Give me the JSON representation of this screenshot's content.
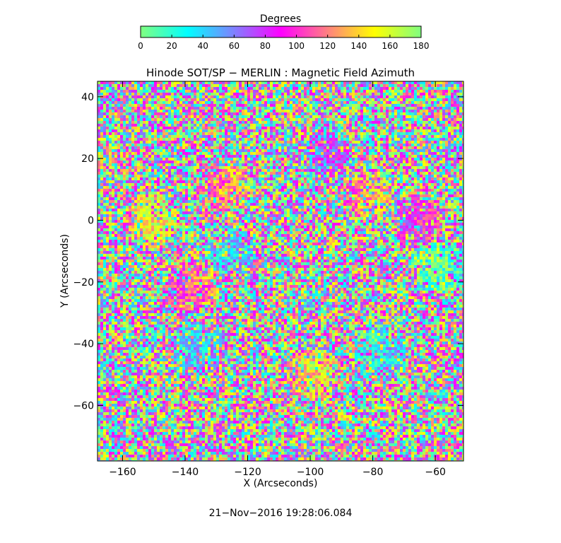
{
  "colorbar": {
    "title": "Degrees",
    "min": 0,
    "max": 180,
    "ticks": [
      0,
      20,
      40,
      60,
      80,
      100,
      120,
      140,
      160,
      180
    ],
    "colormap": [
      "#80ff80",
      "#00ffff",
      "#8080ff",
      "#ff00ff",
      "#ff8080",
      "#ffff00",
      "#80ff80"
    ]
  },
  "chart_data": {
    "type": "heatmap",
    "title": "Hinode SOT/SP − MERLIN : Magnetic Field Azimuth",
    "xlabel": "X (Arcseconds)",
    "ylabel": "Y (Arcseconds)",
    "xlim": [
      -168,
      -51
    ],
    "ylim": [
      -78,
      45
    ],
    "xticks": [
      -160,
      -140,
      -120,
      -100,
      -80,
      -60
    ],
    "yticks": [
      40,
      20,
      0,
      -20,
      -40,
      -60
    ],
    "value_range": [
      0,
      180
    ],
    "units": "Degrees",
    "regions": [
      {
        "center": [
          -125,
          -10
        ],
        "value": 40
      },
      {
        "center": [
          -128,
          10
        ],
        "value": 120
      },
      {
        "center": [
          -135,
          -42
        ],
        "value": 45
      },
      {
        "center": [
          -138,
          -22
        ],
        "value": 110
      },
      {
        "center": [
          -100,
          -50
        ],
        "value": 140
      },
      {
        "center": [
          -82,
          8
        ],
        "value": 130
      },
      {
        "center": [
          -78,
          -42
        ],
        "value": 35
      },
      {
        "center": [
          -65,
          0
        ],
        "value": 90
      },
      {
        "center": [
          -58,
          -15
        ],
        "value": 10
      },
      {
        "center": [
          -150,
          0
        ],
        "value": 150
      },
      {
        "center": [
          -95,
          20
        ],
        "value": 70
      }
    ]
  },
  "timestamp": "21−Nov−2016 19:28:06.084"
}
